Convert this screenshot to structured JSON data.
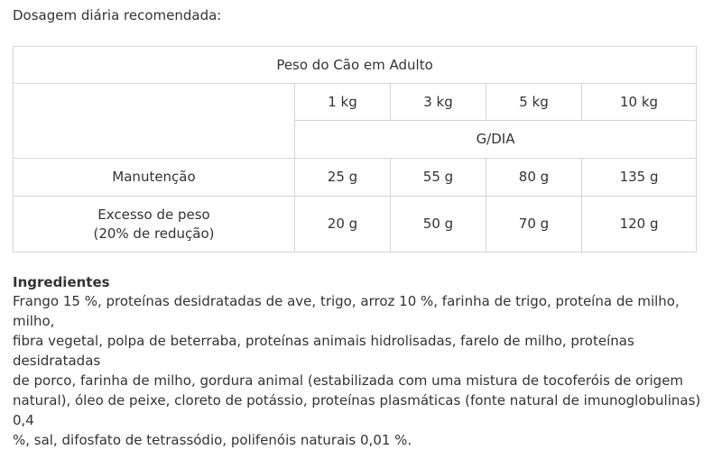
{
  "intro": "Dosagem diária recomendada:",
  "table": {
    "header_title": "Peso do Cão em Adulto",
    "weights": [
      "1 kg",
      "3 kg",
      "5 kg",
      "10 kg"
    ],
    "unit": "G/DIA",
    "rows": [
      {
        "label_lines": [
          "Manutenção"
        ],
        "values": [
          "25 g",
          "55 g",
          "80 g",
          "135 g"
        ]
      },
      {
        "label_lines": [
          "Excesso de peso",
          "(20% de redução)"
        ],
        "values": [
          "20 g",
          "50 g",
          "70 g",
          "120 g"
        ]
      }
    ]
  },
  "ingredients": {
    "title": "Ingredientes",
    "lines": [
      "Frango 15 %, proteínas desidratadas de ave, trigo, arroz 10 %, farinha de trigo, proteína de milho, milho,",
      "fibra vegetal, polpa de beterraba, proteínas animais hidrolisadas, farelo de milho, proteínas desidratadas",
      "de porco, farinha de milho, gordura animal (estabilizada com uma mistura de tocoferóis de origem",
      "natural), óleo de peixe, cloreto de potássio, proteínas plasmáticas (fonte natural de imunoglobulinas) 0,4",
      "%, sal, difosfato de tetrassódio, polifenóis naturais 0,01 %."
    ]
  }
}
